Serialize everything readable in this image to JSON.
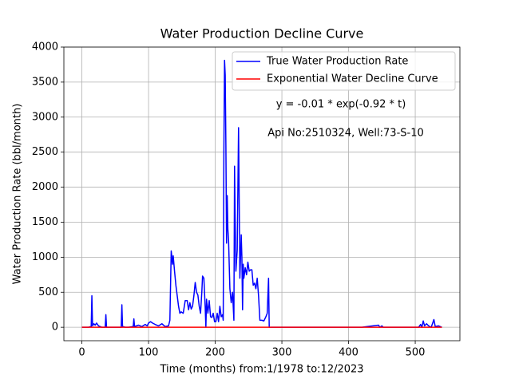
{
  "chart_data": {
    "type": "line",
    "title": "Water Production Decline Curve",
    "xlabel": "Time (months) from:1/1978 to:12/2023",
    "ylabel": "Water Production Rate (bbl/month)",
    "annotations": [
      "y = -0.01 * exp(-0.92 * t)",
      "Api No:2510324, Well:73-S-10"
    ],
    "xlim": [
      -27,
      567
    ],
    "ylim": [
      -192,
      4000
    ],
    "xticks": [
      0,
      100,
      200,
      300,
      400,
      500
    ],
    "yticks": [
      0,
      500,
      1000,
      1500,
      2000,
      2500,
      3000,
      3500,
      4000
    ],
    "grid": true,
    "legend": "upper right",
    "series": [
      {
        "name": "True Water Production Rate",
        "color": "#0000ff",
        "x": [
          0,
          10,
          14,
          15,
          16,
          18,
          20,
          22,
          25,
          30,
          35,
          36,
          37,
          45,
          55,
          59,
          60,
          61,
          65,
          70,
          77,
          78,
          79,
          85,
          90,
          95,
          98,
          100,
          103,
          106,
          110,
          115,
          120,
          125,
          130,
          132,
          134,
          136,
          137,
          139,
          141,
          143,
          145,
          147,
          149,
          152,
          155,
          158,
          160,
          162,
          164,
          166,
          168,
          170,
          172,
          174,
          176,
          178,
          180,
          181,
          183,
          185,
          186,
          187,
          189,
          191,
          193,
          195,
          197,
          199,
          201,
          203,
          205,
          207,
          209,
          211,
          212,
          213,
          214,
          215,
          216,
          217,
          218,
          219,
          220,
          222,
          224,
          226,
          228,
          229,
          230,
          231,
          233,
          235,
          237,
          239,
          240,
          241,
          242,
          243,
          245,
          247,
          249,
          251,
          253,
          255,
          257,
          259,
          261,
          263,
          265,
          267,
          270,
          273,
          276,
          278,
          280,
          281,
          290,
          400,
          420,
          445,
          447,
          450,
          452,
          505,
          508,
          510,
          512,
          514,
          517,
          520,
          524,
          528,
          530,
          535,
          540
        ],
        "values": [
          0,
          0,
          10,
          450,
          20,
          50,
          30,
          60,
          20,
          0,
          0,
          180,
          0,
          0,
          0,
          0,
          320,
          10,
          0,
          0,
          10,
          120,
          10,
          30,
          10,
          40,
          20,
          60,
          80,
          60,
          40,
          20,
          50,
          10,
          20,
          100,
          1090,
          900,
          1020,
          800,
          600,
          450,
          300,
          200,
          220,
          200,
          380,
          380,
          250,
          350,
          260,
          300,
          450,
          640,
          500,
          460,
          300,
          200,
          520,
          730,
          700,
          280,
          0,
          400,
          200,
          380,
          150,
          140,
          200,
          80,
          80,
          200,
          80,
          300,
          150,
          180,
          100,
          2500,
          3810,
          3600,
          2600,
          1200,
          1880,
          1400,
          1250,
          550,
          350,
          500,
          100,
          2300,
          1500,
          800,
          1100,
          2850,
          700,
          1320,
          1000,
          250,
          900,
          700,
          850,
          750,
          930,
          800,
          820,
          820,
          600,
          630,
          550,
          700,
          450,
          100,
          100,
          90,
          150,
          200,
          700,
          0,
          0,
          0,
          0,
          30,
          0,
          20,
          0,
          0,
          40,
          0,
          90,
          20,
          50,
          20,
          0,
          110,
          10,
          20,
          0
        ]
      },
      {
        "name": "Exponential Water Decline Curve",
        "color": "#ff0000",
        "x": [
          0,
          540
        ],
        "values": [
          -0.01,
          0
        ]
      }
    ]
  }
}
